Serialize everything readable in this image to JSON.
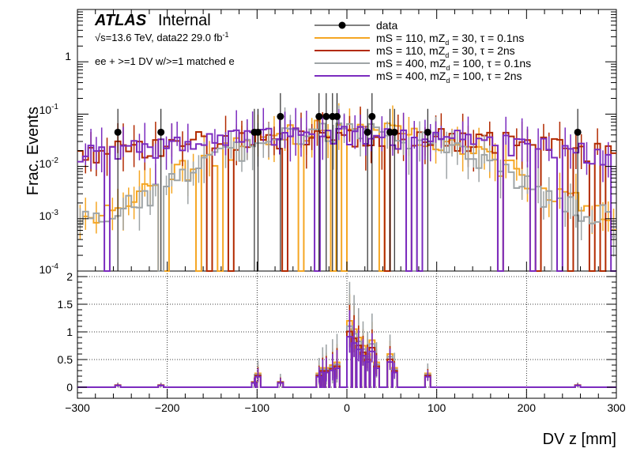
{
  "header": {
    "atlas": "ATLAS",
    "internal": "Internal",
    "energy_line": "√s=13.6 TeV, data22 29.0 fb",
    "energy_sup": "-1",
    "selection": "ee + >=1 DV w/>=1 matched e"
  },
  "legend": {
    "data": "data",
    "s1": {
      "pre": "mS = 110, mZ",
      "sub": "d",
      "post": " = 30, τ = 0.1ns"
    },
    "s2": {
      "pre": "mS = 110, mZ",
      "sub": "d",
      "post": " = 30, τ = 2ns"
    },
    "s3": {
      "pre": "mS = 400, mZ",
      "sub": "d",
      "post": " = 100, τ = 0.1ns"
    },
    "s4": {
      "pre": "mS = 400, mZ",
      "sub": "d",
      "post": " = 100, τ = 2ns"
    }
  },
  "axes": {
    "ylabel": "Frac. Events",
    "xlabel": "DV z [mm]",
    "ytick_top": [
      "10",
      "10",
      "1",
      "10",
      "10"
    ],
    "ytick_top_exp": [
      "-4",
      "-3",
      "",
      "-2",
      "-1"
    ]
  },
  "colors": {
    "data": "#000000",
    "s1": "#f5a623",
    "s2": "#b22a00",
    "s3": "#9ea4a6",
    "s4": "#7b2bbf"
  },
  "chart_data": [
    {
      "type": "line",
      "panel": "top",
      "title": "",
      "xlabel": "DV z [mm]",
      "ylabel": "Frac. Events",
      "xlim": [
        -300,
        300
      ],
      "ylim": [
        0.0001,
        10
      ],
      "yscale": "log",
      "yticks": [
        0.0001,
        0.001,
        0.01,
        0.1,
        1
      ],
      "xticks": [
        -300,
        -200,
        -100,
        0,
        100,
        200,
        300
      ],
      "data_points": {
        "x": [
          -255,
          -207,
          -103,
          -99,
          -74,
          -31,
          -23,
          -16,
          -11,
          23,
          28,
          48,
          53,
          90,
          257
        ],
        "y": [
          0.045,
          0.045,
          0.045,
          0.045,
          0.09,
          0.09,
          0.09,
          0.09,
          0.09,
          0.045,
          0.09,
          0.045,
          0.045,
          0.045,
          0.045
        ]
      },
      "series": [
        {
          "name": "mS = 110, mZd = 30, τ = 0.1ns",
          "key": "s1",
          "width_sigma": 95,
          "peak": 0.055,
          "floor": 0.0004
        },
        {
          "name": "mS = 110, mZd = 30, τ = 2ns",
          "key": "s2",
          "width_sigma": 230,
          "peak": 0.04,
          "floor": 0.0008
        },
        {
          "name": "mS = 400, mZd = 100, τ = 0.1ns",
          "key": "s3",
          "width_sigma": 90,
          "peak": 0.05,
          "floor": 0.0005
        },
        {
          "name": "mS = 400, mZd = 100, τ = 2ns",
          "key": "s4",
          "width_sigma": 210,
          "peak": 0.04,
          "floor": 0.0008
        }
      ]
    },
    {
      "type": "line",
      "panel": "bottom",
      "xlabel": "DV z [mm]",
      "ylabel": "",
      "xlim": [
        -300,
        300
      ],
      "ylim": [
        -0.2,
        2.1
      ],
      "yticks": [
        0,
        0.5,
        1,
        1.5,
        2
      ],
      "ytick_labels": [
        "0",
        "0.5",
        "1",
        "1.5",
        "2"
      ],
      "xticks": [
        -300,
        -200,
        -100,
        0,
        100,
        200,
        300
      ],
      "xtick_labels": [
        "−300",
        "−200",
        "−100",
        "0",
        "100",
        "200",
        "300"
      ],
      "ratio_points": {
        "x": [
          -255,
          -207,
          -103,
          -99,
          -74,
          -31,
          -27,
          -23,
          -16,
          -11,
          3,
          8,
          13,
          18,
          23,
          28,
          33,
          48,
          53,
          90,
          257
        ],
        "y": [
          0.04,
          0.04,
          0.1,
          0.25,
          0.1,
          0.25,
          0.35,
          0.35,
          0.4,
          0.45,
          1.2,
          1.05,
          0.9,
          0.75,
          0.6,
          0.85,
          0.45,
          0.6,
          0.35,
          0.25,
          0.04
        ],
        "err_s3": [
          0.05,
          0.05,
          0.15,
          0.25,
          0.15,
          0.3,
          0.4,
          0.45,
          0.5,
          0.55,
          0.8,
          0.7,
          0.6,
          0.5,
          0.45,
          0.55,
          0.4,
          0.4,
          0.3,
          0.2,
          0.05
        ]
      }
    }
  ]
}
